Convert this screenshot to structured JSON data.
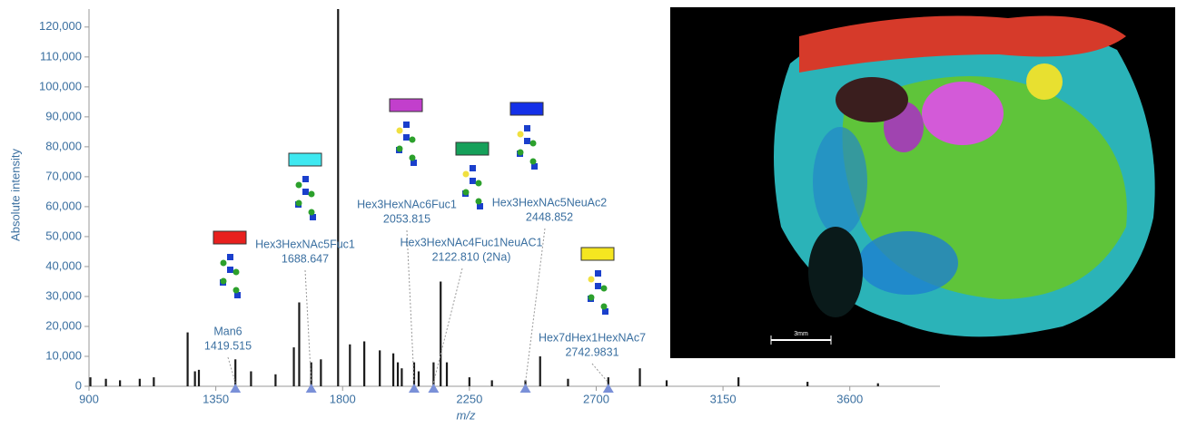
{
  "chart_data": {
    "type": "spectrum",
    "x_label": "m/z",
    "y_label": "Absolute intensity",
    "xlim": [
      900,
      3920
    ],
    "ylim": [
      0,
      126000
    ],
    "xticks": [
      900,
      1350,
      1800,
      2250,
      2700,
      3150,
      3600
    ],
    "yticks": [
      0,
      {
        "value": 10000,
        "label": "10,000"
      },
      {
        "value": 20000,
        "label": "20,000"
      },
      {
        "value": 30000,
        "label": "30,000"
      },
      {
        "value": 40000,
        "label": "40,000"
      },
      {
        "value": 50000,
        "label": "50,000"
      },
      {
        "value": 60000,
        "label": "60,000"
      },
      {
        "value": 70000,
        "label": "70,000"
      },
      {
        "value": 80000,
        "label": "80,000"
      },
      {
        "value": 90000,
        "label": "90,000"
      },
      {
        "value": 100000,
        "label": "100,000"
      },
      {
        "value": 110000,
        "label": "110,000"
      },
      {
        "value": 120000,
        "label": "120,000"
      }
    ],
    "color": "#1a1a1a",
    "x": [
      905,
      960,
      1010,
      1080,
      1130,
      1250,
      1276,
      1290,
      1419.515,
      1475,
      1562,
      1627,
      1646,
      1688.647,
      1723,
      1784,
      1826,
      1877,
      1932,
      1980,
      1996,
      2010,
      2053.815,
      2070,
      2122.81,
      2148,
      2170,
      2250,
      2330,
      2448.852,
      2501,
      2600,
      2742.9831,
      2855,
      2950,
      3205,
      3450,
      3700
    ],
    "values": [
      3000,
      2500,
      2000,
      2500,
      3000,
      18000,
      5000,
      5500,
      9000,
      5000,
      4000,
      13000,
      28000,
      8000,
      9000,
      126000,
      14000,
      15000,
      12000,
      11000,
      8000,
      6000,
      8000,
      5000,
      8000,
      35000,
      8000,
      3000,
      2000,
      2000,
      10000,
      2500,
      3000,
      6000,
      2000,
      3000,
      1500,
      1000
    ],
    "annotations": [
      {
        "x": 1419.515,
        "name": "Man6",
        "mass": "1419.515",
        "color": "#e8201e"
      },
      {
        "x": 1688.647,
        "name": "Hex3HexNAc5Fuc1",
        "mass": "1688.647",
        "color": "#3ee8f0"
      },
      {
        "x": 2053.815,
        "name": "Hex3HexNAc6Fuc1",
        "mass": "2053.815",
        "color": "#c23fcc"
      },
      {
        "x": 2122.81,
        "name": "Hex3HexNAc4Fuc1NeuAC1",
        "mass": "2122.810 (2Na)",
        "color": "#16a05a"
      },
      {
        "x": 2448.852,
        "name": "Hex3HexNAc5NeuAc2",
        "mass": "2448.852",
        "color": "#1430e8"
      },
      {
        "x": 2742.9831,
        "name": "Hex7dHex1HexNAc7",
        "mass": "2742.9831",
        "color": "#f5e620"
      }
    ]
  },
  "image": {
    "scale_label": "3mm"
  }
}
